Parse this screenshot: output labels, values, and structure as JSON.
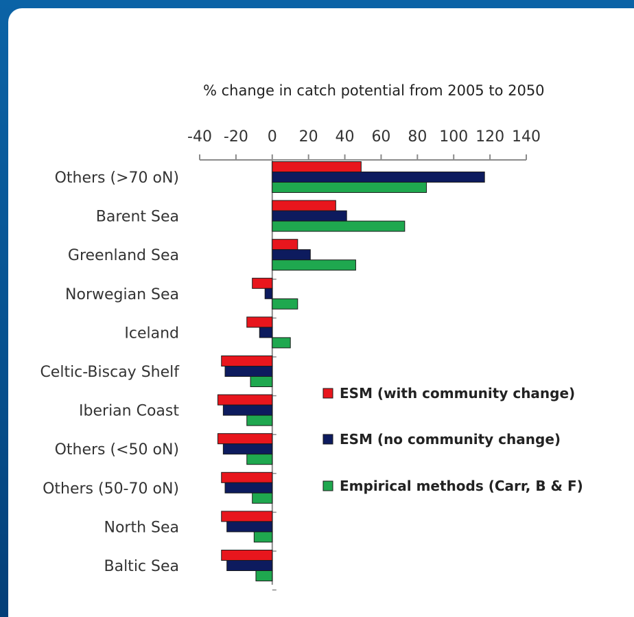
{
  "chart_data": {
    "type": "bar",
    "orientation": "horizontal",
    "title": "% change in catch potential from 2005 to 2050",
    "xlim": [
      -40,
      140
    ],
    "xticks": [
      -40,
      -20,
      0,
      20,
      40,
      60,
      80,
      100,
      120,
      140
    ],
    "categories": [
      "Others (>70 oN)",
      "Barent Sea",
      "Greenland Sea",
      "Norwegian Sea",
      "Iceland",
      "Celtic-Biscay Shelf",
      "Iberian Coast",
      "Others (<50 oN)",
      "Others (50-70 oN)",
      "North Sea",
      "Baltic Sea"
    ],
    "series": [
      {
        "name": "ESM (with community change)",
        "color": "#e8161d",
        "values": [
          49,
          35,
          14,
          -11,
          -14,
          -28,
          -30,
          -30,
          -28,
          -28,
          -28
        ]
      },
      {
        "name": "ESM (no community change)",
        "color": "#0d1b5e",
        "values": [
          117,
          41,
          21,
          -4,
          -7,
          -26,
          -27,
          -27,
          -26,
          -25,
          -25
        ]
      },
      {
        "name": "Empirical methods (Carr, B & F)",
        "color": "#1fa84f",
        "values": [
          85,
          73,
          46,
          14,
          10,
          -12,
          -14,
          -14,
          -11,
          -10,
          -9
        ]
      }
    ],
    "legend_position": "right",
    "grid": false
  }
}
